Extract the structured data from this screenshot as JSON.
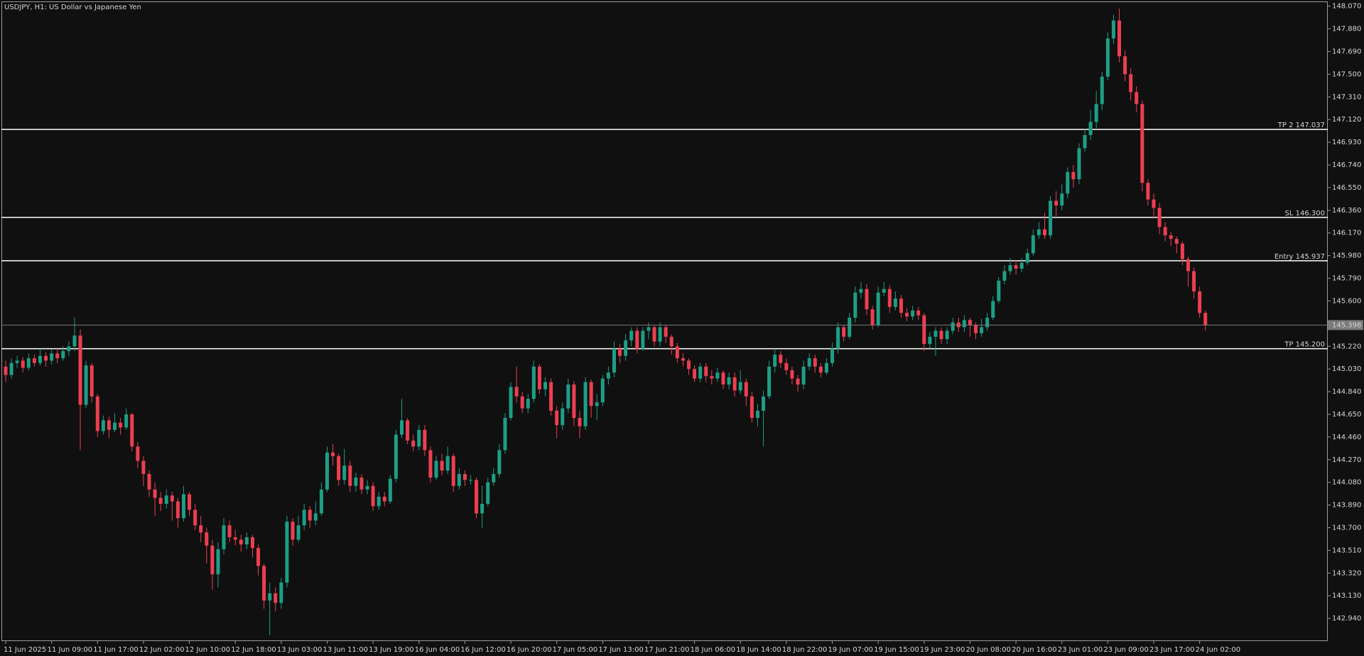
{
  "chart_data": {
    "type": "candlestick",
    "title": "USDJPY, H1:  US Dollar vs Japanese Yen",
    "categories": [
      "11 Jun 2025",
      null,
      null,
      null,
      null,
      null,
      null,
      null,
      "11 Jun 09:00",
      null,
      null,
      null,
      null,
      null,
      null,
      null,
      "11 Jun 17:00",
      null,
      null,
      null,
      null,
      null,
      null,
      null,
      "12 Jun 02:00",
      null,
      null,
      null,
      null,
      null,
      null,
      null,
      "12 Jun 10:00",
      null,
      null,
      null,
      null,
      null,
      null,
      null,
      "12 Jun 18:00",
      null,
      null,
      null,
      null,
      null,
      null,
      null,
      "13 Jun 03:00",
      null,
      null,
      null,
      null,
      null,
      null,
      null,
      "13 Jun 11:00",
      null,
      null,
      null,
      null,
      null,
      null,
      null,
      "13 Jun 19:00",
      null,
      null,
      null,
      null,
      null,
      null,
      null,
      "16 Jun 04:00",
      null,
      null,
      null,
      null,
      null,
      null,
      null,
      "16 Jun 12:00",
      null,
      null,
      null,
      null,
      null,
      null,
      null,
      "16 Jun 20:00",
      null,
      null,
      null,
      null,
      null,
      null,
      null,
      "17 Jun 05:00",
      null,
      null,
      null,
      null,
      null,
      null,
      null,
      "17 Jun 13:00",
      null,
      null,
      null,
      null,
      null,
      null,
      null,
      "17 Jun 21:00",
      null,
      null,
      null,
      null,
      null,
      null,
      null,
      "18 Jun 06:00",
      null,
      null,
      null,
      null,
      null,
      null,
      null,
      "18 Jun 14:00",
      null,
      null,
      null,
      null,
      null,
      null,
      null,
      "18 Jun 22:00",
      null,
      null,
      null,
      null,
      null,
      null,
      null,
      "19 Jun 07:00",
      null,
      null,
      null,
      null,
      null,
      null,
      null,
      "19 Jun 15:00",
      null,
      null,
      null,
      null,
      null,
      null,
      null,
      "19 Jun 23:00",
      null,
      null,
      null,
      null,
      null,
      null,
      null,
      "20 Jun 08:00",
      null,
      null,
      null,
      null,
      null,
      null,
      null,
      "20 Jun 16:00",
      null,
      null,
      null,
      null,
      null,
      null,
      null,
      "23 Jun 01:00",
      null,
      null,
      null,
      null,
      null,
      null,
      null,
      "23 Jun 09:00",
      null,
      null,
      null,
      null,
      null,
      null,
      null,
      "23 Jun 17:00",
      null,
      null,
      null,
      null,
      null,
      null,
      null,
      "24 Jun 02:00",
      null
    ],
    "open": [
      145.05,
      144.98,
      145.08,
      145.1,
      145.04,
      145.12,
      145.08,
      145.14,
      145.1,
      145.16,
      145.12,
      145.18,
      145.22,
      145.31,
      144.73,
      145.06,
      144.8,
      144.51,
      144.6,
      144.52,
      144.58,
      144.54,
      144.65,
      144.38,
      144.26,
      144.15,
      144.02,
      143.95,
      143.9,
      143.97,
      143.92,
      143.78,
      143.98,
      143.85,
      143.72,
      143.66,
      143.55,
      143.31,
      143.52,
      143.72,
      143.62,
      143.6,
      143.56,
      143.62,
      143.53,
      143.38,
      143.09,
      143.15,
      143.07,
      143.24,
      143.75,
      143.6,
      143.72,
      143.85,
      143.76,
      143.82,
      144.02,
      144.33,
      144.3,
      144.1,
      144.22,
      144.05,
      144.12,
      144.02,
      144.05,
      143.88,
      143.96,
      143.92,
      144.11,
      144.48,
      144.6,
      144.43,
      144.38,
      144.52,
      144.35,
      144.12,
      144.26,
      144.18,
      144.3,
      144.05,
      144.15,
      144.1,
      144.1,
      143.82,
      143.9,
      144.08,
      144.15,
      144.35,
      144.62,
      144.88,
      144.8,
      144.7,
      144.78,
      145.05,
      144.86,
      144.92,
      144.68,
      144.56,
      144.7,
      144.9,
      144.62,
      144.55,
      144.92,
      144.72,
      144.75,
      144.95,
      145.0,
      145.2,
      145.14,
      145.27,
      145.35,
      145.2,
      145.35,
      145.38,
      145.26,
      145.38,
      145.3,
      145.22,
      145.12,
      145.1,
      145.03,
      144.95,
      145.05,
      144.97,
      144.95,
      145.0,
      144.9,
      144.96,
      144.85,
      144.92,
      144.8,
      144.62,
      144.68,
      144.8,
      145.05,
      145.15,
      145.08,
      145.02,
      144.95,
      144.9,
      145.05,
      145.12,
      145.05,
      145.0,
      145.08,
      145.2,
      145.38,
      145.3,
      145.46,
      145.67,
      145.7,
      145.53,
      145.4,
      145.67,
      145.7,
      145.55,
      145.62,
      145.5,
      145.47,
      145.52,
      145.48,
      145.24,
      145.3,
      145.35,
      145.28,
      145.35,
      145.42,
      145.38,
      145.44,
      145.4,
      145.33,
      145.38,
      145.46,
      145.6,
      145.77,
      145.85,
      145.9,
      145.87,
      145.92,
      146.0,
      146.15,
      146.2,
      146.15,
      146.44,
      146.4,
      146.5,
      146.68,
      146.62,
      146.88,
      146.99,
      147.1,
      147.25,
      147.48,
      147.8,
      147.95,
      147.65,
      147.5,
      147.35,
      147.25,
      146.59,
      146.45,
      146.38,
      146.22,
      146.15,
      146.12,
      146.08,
      145.95,
      145.85,
      145.68,
      145.5
    ],
    "high": [
      145.1,
      145.12,
      145.14,
      145.13,
      145.16,
      145.15,
      145.2,
      145.17,
      145.19,
      145.2,
      145.22,
      145.26,
      145.46,
      145.36,
      145.1,
      145.08,
      144.82,
      144.64,
      144.63,
      144.66,
      144.62,
      144.7,
      144.66,
      144.42,
      144.3,
      144.18,
      144.08,
      144.0,
      144.02,
      144.0,
      143.95,
      144.05,
      144.0,
      143.9,
      143.8,
      143.7,
      143.6,
      143.58,
      143.78,
      143.76,
      143.68,
      143.64,
      143.66,
      143.64,
      143.56,
      143.4,
      143.24,
      143.2,
      143.28,
      143.8,
      143.78,
      143.8,
      143.9,
      143.88,
      143.92,
      144.08,
      144.38,
      144.4,
      144.32,
      144.36,
      144.26,
      144.16,
      144.15,
      144.1,
      144.08,
      144.0,
      144.0,
      144.14,
      144.52,
      144.78,
      144.62,
      144.48,
      144.56,
      144.56,
      144.38,
      144.3,
      144.32,
      144.38,
      144.32,
      144.2,
      144.18,
      144.14,
      144.12,
      144.05,
      144.12,
      144.2,
      144.4,
      144.66,
      144.92,
      145.05,
      144.84,
      144.82,
      145.1,
      145.07,
      144.96,
      144.95,
      144.72,
      144.75,
      144.95,
      144.93,
      144.68,
      144.96,
      144.94,
      144.82,
      144.98,
      145.05,
      145.26,
      145.24,
      145.32,
      145.38,
      145.38,
      145.38,
      145.42,
      145.4,
      145.42,
      145.4,
      145.32,
      145.25,
      145.16,
      145.12,
      145.06,
      145.08,
      145.08,
      145.02,
      145.04,
      145.02,
      145.0,
      145.0,
      145.02,
      144.95,
      144.84,
      144.74,
      144.85,
      145.1,
      145.2,
      145.18,
      145.12,
      145.05,
      144.98,
      145.1,
      145.16,
      145.15,
      145.08,
      145.12,
      145.25,
      145.42,
      145.4,
      145.5,
      145.72,
      145.76,
      145.74,
      145.56,
      145.72,
      145.76,
      145.73,
      145.68,
      145.65,
      145.54,
      145.56,
      145.55,
      145.5,
      145.34,
      145.38,
      145.38,
      145.38,
      145.46,
      145.46,
      145.48,
      145.46,
      145.42,
      145.45,
      145.5,
      145.64,
      145.8,
      145.9,
      145.96,
      145.94,
      145.96,
      146.04,
      146.2,
      146.26,
      146.34,
      146.48,
      146.52,
      146.58,
      146.72,
      146.74,
      146.92,
      147.04,
      147.2,
      147.36,
      147.52,
      147.85,
      148.0,
      148.05,
      147.7,
      147.55,
      147.4,
      147.28,
      146.62,
      146.5,
      146.42,
      146.26,
      146.18,
      146.14,
      146.1,
      145.97,
      145.88,
      145.72,
      145.52
    ],
    "low": [
      144.92,
      144.95,
      145.04,
      145.0,
      145.02,
      145.05,
      145.06,
      145.05,
      145.07,
      145.08,
      145.1,
      145.14,
      145.18,
      144.35,
      144.7,
      144.75,
      144.46,
      144.48,
      144.45,
      144.5,
      144.48,
      144.52,
      144.34,
      144.2,
      144.05,
      143.96,
      143.8,
      143.84,
      143.86,
      143.76,
      143.7,
      143.75,
      143.8,
      143.68,
      143.58,
      143.4,
      143.18,
      143.2,
      143.48,
      143.58,
      143.55,
      143.5,
      143.52,
      143.45,
      143.3,
      143.02,
      142.8,
      143.0,
      143.02,
      143.2,
      143.55,
      143.58,
      143.68,
      143.7,
      143.72,
      143.8,
      144.0,
      144.22,
      144.05,
      144.06,
      144.0,
      144.0,
      143.98,
      143.98,
      143.84,
      143.85,
      143.88,
      143.9,
      144.08,
      144.45,
      144.4,
      144.34,
      144.35,
      144.3,
      144.08,
      144.1,
      144.14,
      144.15,
      144.0,
      144.02,
      144.05,
      144.06,
      143.78,
      143.7,
      143.88,
      144.05,
      144.12,
      144.32,
      144.6,
      144.75,
      144.66,
      144.66,
      144.75,
      144.82,
      144.8,
      144.64,
      144.45,
      144.52,
      144.66,
      144.55,
      144.45,
      144.52,
      144.62,
      144.6,
      144.72,
      144.9,
      144.96,
      145.08,
      145.1,
      145.22,
      145.16,
      145.18,
      145.28,
      145.22,
      145.22,
      145.25,
      145.15,
      145.08,
      145.05,
      144.98,
      144.92,
      144.92,
      144.92,
      144.9,
      144.92,
      144.86,
      144.86,
      144.8,
      144.82,
      144.72,
      144.58,
      144.55,
      144.38,
      144.78,
      145.0,
      145.04,
      144.98,
      144.9,
      144.84,
      144.86,
      145.02,
      145.0,
      144.96,
      144.98,
      145.05,
      145.16,
      145.26,
      145.28,
      145.42,
      145.62,
      145.48,
      145.36,
      145.38,
      145.64,
      145.5,
      145.52,
      145.46,
      145.43,
      145.44,
      145.44,
      145.18,
      145.2,
      145.14,
      145.24,
      145.24,
      145.32,
      145.34,
      145.34,
      145.3,
      145.28,
      145.3,
      145.35,
      145.44,
      145.58,
      145.74,
      145.82,
      145.82,
      145.84,
      145.9,
      145.98,
      146.12,
      146.12,
      146.12,
      146.3,
      146.36,
      146.46,
      146.55,
      146.58,
      146.85,
      146.95,
      147.05,
      147.2,
      147.45,
      147.75,
      147.6,
      147.44,
      147.28,
      147.18,
      146.52,
      146.4,
      146.3,
      146.16,
      146.1,
      146.06,
      146.0,
      145.9,
      145.72,
      145.62,
      145.46,
      145.35
    ],
    "close": [
      144.98,
      145.08,
      145.1,
      145.04,
      145.12,
      145.08,
      145.14,
      145.1,
      145.16,
      145.12,
      145.18,
      145.22,
      145.31,
      144.73,
      145.06,
      144.8,
      144.51,
      144.6,
      144.52,
      144.58,
      144.54,
      144.65,
      144.38,
      144.26,
      144.15,
      144.02,
      143.95,
      143.9,
      143.97,
      143.92,
      143.78,
      143.98,
      143.85,
      143.72,
      143.66,
      143.55,
      143.31,
      143.52,
      143.72,
      143.62,
      143.6,
      143.56,
      143.62,
      143.53,
      143.38,
      143.09,
      143.15,
      143.07,
      143.24,
      143.75,
      143.6,
      143.72,
      143.85,
      143.76,
      143.82,
      144.02,
      144.33,
      144.3,
      144.1,
      144.22,
      144.05,
      144.12,
      144.02,
      144.05,
      143.88,
      143.96,
      143.92,
      144.11,
      144.48,
      144.6,
      144.43,
      144.38,
      144.52,
      144.35,
      144.12,
      144.26,
      144.18,
      144.3,
      144.05,
      144.15,
      144.1,
      144.1,
      143.82,
      143.9,
      144.08,
      144.15,
      144.35,
      144.62,
      144.88,
      144.8,
      144.7,
      144.78,
      145.05,
      144.86,
      144.92,
      144.68,
      144.56,
      144.7,
      144.9,
      144.62,
      144.55,
      144.92,
      144.72,
      144.75,
      144.95,
      145.0,
      145.2,
      145.14,
      145.27,
      145.35,
      145.2,
      145.35,
      145.38,
      145.26,
      145.38,
      145.3,
      145.22,
      145.12,
      145.1,
      145.03,
      144.95,
      145.05,
      144.97,
      144.95,
      145.0,
      144.9,
      144.96,
      144.85,
      144.92,
      144.8,
      144.62,
      144.68,
      144.8,
      145.05,
      145.15,
      145.08,
      145.02,
      144.95,
      144.9,
      145.05,
      145.12,
      145.05,
      145.0,
      145.08,
      145.2,
      145.38,
      145.3,
      145.46,
      145.67,
      145.7,
      145.53,
      145.4,
      145.67,
      145.7,
      145.55,
      145.62,
      145.5,
      145.47,
      145.52,
      145.48,
      145.24,
      145.3,
      145.35,
      145.28,
      145.35,
      145.42,
      145.38,
      145.44,
      145.4,
      145.33,
      145.38,
      145.46,
      145.6,
      145.77,
      145.85,
      145.9,
      145.87,
      145.92,
      146.0,
      146.15,
      146.2,
      146.15,
      146.44,
      146.4,
      146.5,
      146.68,
      146.62,
      146.88,
      146.99,
      147.1,
      147.25,
      147.48,
      147.8,
      147.95,
      147.65,
      147.5,
      147.35,
      147.25,
      146.59,
      146.45,
      146.38,
      146.22,
      146.15,
      146.12,
      146.08,
      145.95,
      145.85,
      145.68,
      145.5,
      145.398
    ],
    "up_color": "#1e9e86",
    "down_color": "#ec3f50",
    "ylim": [
      142.75,
      148.11
    ],
    "yticks": [
      {
        "value": 148.07,
        "label": "148.070"
      },
      {
        "value": 147.88,
        "label": "147.880"
      },
      {
        "value": 147.69,
        "label": "147.690"
      },
      {
        "value": 147.5,
        "label": "147.500"
      },
      {
        "value": 147.31,
        "label": "147.310"
      },
      {
        "value": 147.12,
        "label": "147.120"
      },
      {
        "value": 146.93,
        "label": "146.930"
      },
      {
        "value": 146.74,
        "label": "146.740"
      },
      {
        "value": 146.55,
        "label": "146.550"
      },
      {
        "value": 146.36,
        "label": "146.360"
      },
      {
        "value": 146.17,
        "label": "146.170"
      },
      {
        "value": 145.98,
        "label": "145.980"
      },
      {
        "value": 145.79,
        "label": "145.790"
      },
      {
        "value": 145.6,
        "label": "145.600"
      },
      {
        "value": 145.22,
        "label": "145.220"
      },
      {
        "value": 145.03,
        "label": "145.030"
      },
      {
        "value": 144.84,
        "label": "144.840"
      },
      {
        "value": 144.65,
        "label": "144.650"
      },
      {
        "value": 144.46,
        "label": "144.460"
      },
      {
        "value": 144.27,
        "label": "144.270"
      },
      {
        "value": 144.08,
        "label": "144.080"
      },
      {
        "value": 143.89,
        "label": "143.890"
      },
      {
        "value": 143.7,
        "label": "143.700"
      },
      {
        "value": 143.51,
        "label": "143.510"
      },
      {
        "value": 143.32,
        "label": "143.320"
      },
      {
        "value": 143.13,
        "label": "143.130"
      },
      {
        "value": 142.94,
        "label": "142.940"
      }
    ],
    "levels": [
      {
        "value": 147.037,
        "label": "TP 2 147.037"
      },
      {
        "value": 146.3,
        "label": "SL 146.300"
      },
      {
        "value": 145.937,
        "label": "Entry 145.937"
      },
      {
        "value": 145.2,
        "label": "TP 145.200"
      }
    ],
    "level_color": "#ffffff",
    "bid_color": "#7a7a7a"
  }
}
